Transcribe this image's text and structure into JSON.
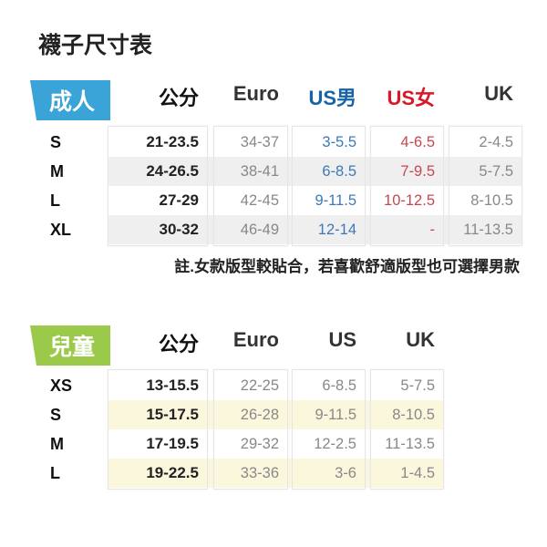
{
  "title": "襪子尺寸表",
  "adult": {
    "badge": "成人",
    "badge_color": "#3aa3d8",
    "stripe_color": "#efefef",
    "headers": [
      {
        "label": "公分",
        "color": "#111111"
      },
      {
        "label": "Euro",
        "color": "#333333"
      },
      {
        "label": "US男",
        "color": "#1763a8"
      },
      {
        "label": "US女",
        "color": "#d7192a"
      },
      {
        "label": "UK",
        "color": "#333333"
      }
    ],
    "value_colors": [
      "#222222",
      "#888888",
      "#3d79b8",
      "#c8474f",
      "#888888"
    ],
    "rows": [
      {
        "size": "S",
        "values": [
          "21-23.5",
          "34-37",
          "3-5.5",
          "4-6.5",
          "2-4.5"
        ]
      },
      {
        "size": "M",
        "values": [
          "24-26.5",
          "38-41",
          "6-8.5",
          "7-9.5",
          "5-7.5"
        ]
      },
      {
        "size": "L",
        "values": [
          "27-29",
          "42-45",
          "9-11.5",
          "10-12.5",
          "8-10.5"
        ]
      },
      {
        "size": "XL",
        "values": [
          "30-32",
          "46-49",
          "12-14",
          "-",
          "11-13.5"
        ]
      }
    ],
    "note": "註.女款版型較貼合，若喜歡舒適版型也可選擇男款"
  },
  "kids": {
    "badge": "兒童",
    "badge_color": "#9bc94a",
    "stripe_color": "#fbf7dd",
    "headers": [
      {
        "label": "公分",
        "color": "#111111"
      },
      {
        "label": "Euro",
        "color": "#333333"
      },
      {
        "label": "US",
        "color": "#333333"
      },
      {
        "label": "UK",
        "color": "#333333"
      }
    ],
    "value_colors": [
      "#222222",
      "#888888",
      "#888888",
      "#888888"
    ],
    "rows": [
      {
        "size": "XS",
        "values": [
          "13-15.5",
          "22-25",
          "6-8.5",
          "5-7.5"
        ]
      },
      {
        "size": "S",
        "values": [
          "15-17.5",
          "26-28",
          "9-11.5",
          "8-10.5"
        ]
      },
      {
        "size": "M",
        "values": [
          "17-19.5",
          "29-32",
          "12-2.5",
          "11-13.5"
        ]
      },
      {
        "size": "L",
        "values": [
          "19-22.5",
          "33-36",
          "3-6",
          "1-4.5"
        ]
      }
    ]
  }
}
